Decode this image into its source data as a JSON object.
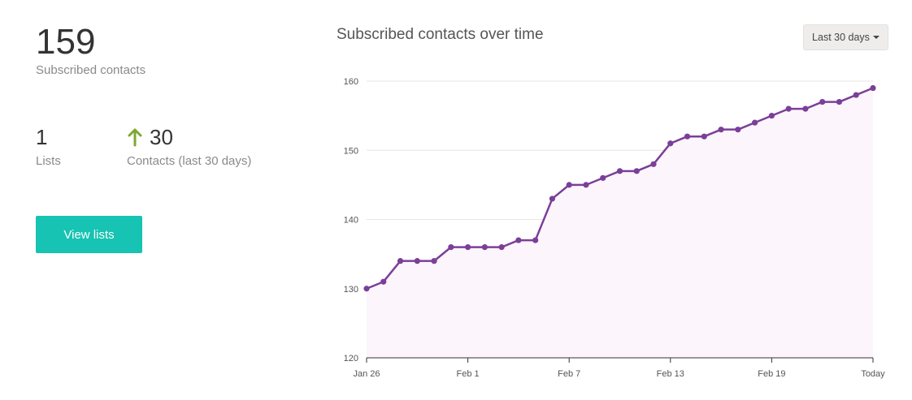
{
  "summary": {
    "subscribed_count": "159",
    "subscribed_label": "Subscribed contacts",
    "lists_count": "1",
    "lists_label": "Lists",
    "contacts_change": "30",
    "contacts_change_label": "Contacts (last 30 days)",
    "view_lists_button": "View lists"
  },
  "chart_header": {
    "title": "Subscribed contacts over time",
    "range_selector": "Last 30 days"
  },
  "colors": {
    "accent_button": "#17c3b2",
    "line": "#7b3f98",
    "area_fill": "#fcf6fc",
    "up_arrow": "#7ea832"
  },
  "chart_data": {
    "type": "area",
    "title": "Subscribed contacts over time",
    "x_tick_labels": [
      "Jan 26",
      "Feb 1",
      "Feb 7",
      "Feb 13",
      "Feb 19",
      "Today"
    ],
    "y_tick_labels": [
      "120",
      "130",
      "140",
      "150",
      "160"
    ],
    "ylim": [
      120,
      160
    ],
    "grid": true,
    "series": [
      {
        "values": [
          130,
          131,
          134,
          134,
          134,
          136,
          136,
          136,
          136,
          137,
          137,
          143,
          145,
          145,
          146,
          147,
          147,
          148,
          151,
          152,
          152,
          153,
          153,
          154,
          155,
          156,
          156,
          157,
          157,
          158,
          159
        ]
      }
    ]
  }
}
